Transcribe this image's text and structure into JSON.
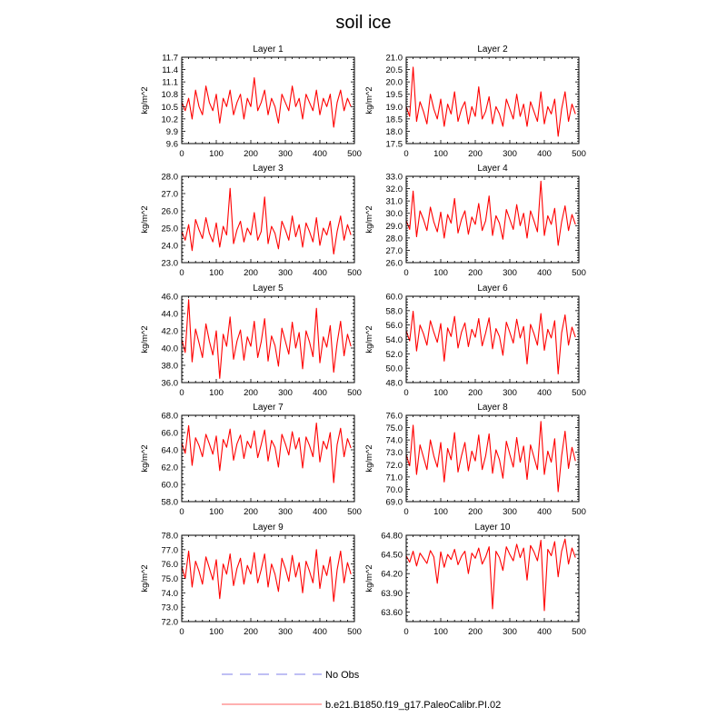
{
  "page": {
    "title": "soil ice"
  },
  "legend": {
    "items": [
      {
        "label": "No Obs",
        "color": "#9999ee",
        "style": "dashed"
      },
      {
        "label": "b.e21.B1850.f19_g17.PaleoCalibr.PI.02",
        "color": "#ff0000",
        "style": "solid"
      }
    ]
  },
  "chart_data": [
    {
      "type": "line",
      "title": "Layer 1",
      "xlabel": "",
      "ylabel": "kg/m^2",
      "xlim": [
        0,
        500
      ],
      "ylim": [
        9.6,
        11.7
      ],
      "xticks": [
        0,
        100,
        200,
        300,
        400,
        500
      ],
      "xtick_labels": [
        "0",
        "100",
        "200",
        "300",
        "400",
        "500"
      ],
      "yticks": [
        9.6,
        9.9,
        10.2,
        10.5,
        10.8,
        11.1,
        11.4,
        11.7
      ],
      "ytick_labels": [
        "9.6",
        "9.9",
        "10.2",
        "10.5",
        "10.8",
        "11.1",
        "11.4",
        "11.7"
      ],
      "series": [
        {
          "name": "b.e21.B1850.f19_g17.PaleoCalibr.PI.02",
          "color": "#ff0000",
          "values": [
            10.6,
            10.4,
            10.7,
            10.2,
            10.9,
            10.5,
            10.3,
            11.0,
            10.6,
            10.4,
            10.8,
            10.1,
            10.7,
            10.5,
            10.9,
            10.3,
            10.6,
            10.8,
            10.2,
            10.7,
            10.5,
            11.2,
            10.4,
            10.6,
            10.9,
            10.3,
            10.7,
            10.5,
            10.1,
            10.8,
            10.6,
            10.4,
            11.0,
            10.5,
            10.7,
            10.2,
            10.8,
            10.6,
            10.4,
            10.9,
            10.3,
            10.7,
            10.5,
            10.8,
            10.0,
            10.6,
            10.9,
            10.4,
            10.7,
            10.5
          ]
        }
      ]
    },
    {
      "type": "line",
      "title": "Layer 2",
      "xlabel": "",
      "ylabel": "kg/m^2",
      "xlim": [
        0,
        500
      ],
      "ylim": [
        17.5,
        21.0
      ],
      "xticks": [
        0,
        100,
        200,
        300,
        400,
        500
      ],
      "xtick_labels": [
        "0",
        "100",
        "200",
        "300",
        "400",
        "500"
      ],
      "yticks": [
        17.5,
        18.0,
        18.5,
        19.0,
        19.5,
        20.0,
        20.5,
        21.0
      ],
      "ytick_labels": [
        "17.5",
        "18.0",
        "18.5",
        "19.0",
        "19.5",
        "20.0",
        "20.5",
        "21.0"
      ],
      "series": [
        {
          "name": "b.e21.B1850.f19_g17.PaleoCalibr.PI.02",
          "color": "#ff0000",
          "values": [
            19.0,
            18.6,
            20.6,
            18.4,
            19.2,
            18.8,
            18.3,
            19.5,
            18.9,
            18.5,
            19.3,
            18.2,
            19.1,
            18.7,
            19.6,
            18.4,
            18.9,
            19.2,
            18.3,
            19.0,
            18.6,
            19.8,
            18.5,
            18.8,
            19.4,
            18.3,
            19.0,
            18.7,
            18.2,
            19.3,
            18.9,
            18.5,
            19.5,
            18.6,
            19.1,
            18.2,
            19.2,
            18.8,
            18.4,
            19.6,
            18.3,
            19.0,
            18.7,
            19.3,
            17.8,
            18.9,
            19.6,
            18.4,
            19.1,
            18.7
          ]
        }
      ]
    },
    {
      "type": "line",
      "title": "Layer 3",
      "xlabel": "",
      "ylabel": "kg/m^2",
      "xlim": [
        0,
        500
      ],
      "ylim": [
        23.0,
        28.0
      ],
      "xticks": [
        0,
        100,
        200,
        300,
        400,
        500
      ],
      "xtick_labels": [
        "0",
        "100",
        "200",
        "300",
        "400",
        "500"
      ],
      "yticks": [
        23.0,
        24.0,
        25.0,
        26.0,
        27.0,
        28.0
      ],
      "ytick_labels": [
        "23.0",
        "24.0",
        "25.0",
        "26.0",
        "27.0",
        "28.0"
      ],
      "series": [
        {
          "name": "b.e21.B1850.f19_g17.PaleoCalibr.PI.02",
          "color": "#ff0000",
          "values": [
            24.8,
            24.3,
            25.2,
            23.7,
            25.5,
            24.9,
            24.4,
            25.6,
            24.7,
            24.2,
            25.3,
            23.9,
            25.1,
            24.6,
            27.3,
            24.1,
            24.9,
            25.4,
            24.2,
            25.0,
            24.6,
            25.9,
            24.3,
            24.8,
            26.8,
            24.1,
            25.1,
            24.7,
            23.8,
            25.4,
            24.9,
            24.3,
            25.7,
            24.5,
            25.2,
            23.9,
            25.3,
            24.8,
            24.2,
            25.6,
            24.0,
            25.0,
            24.6,
            25.4,
            23.5,
            24.8,
            25.7,
            24.3,
            25.2,
            24.6
          ]
        }
      ]
    },
    {
      "type": "line",
      "title": "Layer 4",
      "xlabel": "",
      "ylabel": "kg/m^2",
      "xlim": [
        0,
        500
      ],
      "ylim": [
        26.0,
        33.0
      ],
      "xticks": [
        0,
        100,
        200,
        300,
        400,
        500
      ],
      "xtick_labels": [
        "0",
        "100",
        "200",
        "300",
        "400",
        "500"
      ],
      "yticks": [
        26.0,
        27.0,
        28.0,
        29.0,
        30.0,
        31.0,
        32.0,
        33.0
      ],
      "ytick_labels": [
        "26.0",
        "27.0",
        "28.0",
        "29.0",
        "30.0",
        "31.0",
        "32.0",
        "33.0"
      ],
      "series": [
        {
          "name": "b.e21.B1850.f19_g17.PaleoCalibr.PI.02",
          "color": "#ff0000",
          "values": [
            29.4,
            28.7,
            31.8,
            28.1,
            30.2,
            29.5,
            28.6,
            30.5,
            29.3,
            28.5,
            30.1,
            28.0,
            29.9,
            29.2,
            31.2,
            28.4,
            29.5,
            30.2,
            28.3,
            29.7,
            29.1,
            30.8,
            28.6,
            29.4,
            31.4,
            28.2,
            29.8,
            29.2,
            27.9,
            30.3,
            29.5,
            28.7,
            30.7,
            29.0,
            30.0,
            28.0,
            30.2,
            29.4,
            28.5,
            32.6,
            28.2,
            29.8,
            29.1,
            30.4,
            27.4,
            29.3,
            30.6,
            28.6,
            29.9,
            29.1
          ]
        }
      ]
    },
    {
      "type": "line",
      "title": "Layer 5",
      "xlabel": "",
      "ylabel": "kg/m^2",
      "xlim": [
        0,
        500
      ],
      "ylim": [
        36.0,
        46.0
      ],
      "xticks": [
        0,
        100,
        200,
        300,
        400,
        500
      ],
      "xtick_labels": [
        "0",
        "100",
        "200",
        "300",
        "400",
        "500"
      ],
      "yticks": [
        36.0,
        38.0,
        40.0,
        42.0,
        44.0,
        46.0
      ],
      "ytick_labels": [
        "36.0",
        "38.0",
        "40.0",
        "42.0",
        "44.0",
        "46.0"
      ],
      "series": [
        {
          "name": "b.e21.B1850.f19_g17.PaleoCalibr.PI.02",
          "color": "#ff0000",
          "values": [
            41.0,
            39.5,
            45.6,
            38.4,
            42.2,
            40.6,
            38.9,
            42.8,
            40.8,
            39.2,
            42.0,
            36.5,
            41.6,
            40.2,
            43.6,
            38.7,
            40.8,
            42.1,
            38.6,
            41.3,
            40.2,
            43.1,
            38.9,
            40.7,
            43.4,
            38.5,
            41.4,
            40.3,
            37.9,
            42.3,
            40.8,
            39.3,
            43.0,
            40.0,
            41.8,
            37.6,
            42.0,
            40.7,
            39.0,
            44.6,
            38.3,
            41.3,
            40.1,
            42.6,
            37.2,
            40.6,
            43.1,
            39.1,
            41.6,
            40.2
          ]
        }
      ]
    },
    {
      "type": "line",
      "title": "Layer 6",
      "xlabel": "",
      "ylabel": "kg/m^2",
      "xlim": [
        0,
        500
      ],
      "ylim": [
        48.0,
        60.0
      ],
      "xticks": [
        0,
        100,
        200,
        300,
        400,
        500
      ],
      "xtick_labels": [
        "0",
        "100",
        "200",
        "300",
        "400",
        "500"
      ],
      "yticks": [
        48.0,
        50.0,
        52.0,
        54.0,
        56.0,
        58.0,
        60.0
      ],
      "ytick_labels": [
        "48.0",
        "50.0",
        "52.0",
        "54.0",
        "56.0",
        "58.0",
        "60.0"
      ],
      "series": [
        {
          "name": "b.e21.B1850.f19_g17.PaleoCalibr.PI.02",
          "color": "#ff0000",
          "values": [
            55.2,
            53.8,
            57.9,
            52.4,
            56.0,
            54.8,
            53.2,
            56.6,
            55.0,
            53.6,
            56.2,
            51.0,
            55.6,
            54.4,
            57.2,
            52.8,
            55.0,
            56.3,
            53.0,
            55.4,
            54.3,
            56.9,
            53.1,
            54.9,
            57.0,
            52.7,
            55.5,
            54.4,
            51.8,
            56.4,
            55.0,
            53.5,
            56.8,
            54.2,
            55.8,
            50.6,
            56.1,
            54.8,
            53.2,
            57.6,
            52.5,
            55.4,
            54.2,
            56.6,
            49.2,
            54.9,
            57.4,
            53.2,
            55.7,
            54.3
          ]
        }
      ]
    },
    {
      "type": "line",
      "title": "Layer 7",
      "xlabel": "",
      "ylabel": "kg/m^2",
      "xlim": [
        0,
        500
      ],
      "ylim": [
        58.0,
        68.0
      ],
      "xticks": [
        0,
        100,
        200,
        300,
        400,
        500
      ],
      "xtick_labels": [
        "0",
        "100",
        "200",
        "300",
        "400",
        "500"
      ],
      "yticks": [
        58.0,
        60.0,
        62.0,
        64.0,
        66.0,
        68.0
      ],
      "ytick_labels": [
        "58.0",
        "60.0",
        "62.0",
        "64.0",
        "66.0",
        "68.0"
      ],
      "series": [
        {
          "name": "b.e21.B1850.f19_g17.PaleoCalibr.PI.02",
          "color": "#ff0000",
          "values": [
            64.8,
            63.6,
            66.8,
            62.2,
            65.4,
            64.5,
            63.2,
            65.8,
            64.7,
            63.5,
            65.6,
            61.6,
            65.2,
            64.3,
            66.4,
            62.8,
            64.7,
            65.7,
            63.0,
            65.0,
            64.2,
            66.2,
            63.1,
            64.6,
            66.3,
            62.7,
            65.1,
            64.3,
            62.0,
            65.8,
            64.7,
            63.4,
            66.1,
            64.1,
            65.4,
            61.9,
            65.5,
            64.5,
            63.2,
            67.1,
            62.6,
            65.0,
            64.1,
            66.0,
            60.2,
            64.6,
            66.5,
            63.2,
            65.3,
            64.2
          ]
        }
      ]
    },
    {
      "type": "line",
      "title": "Layer 8",
      "xlabel": "",
      "ylabel": "kg/m^2",
      "xlim": [
        0,
        500
      ],
      "ylim": [
        69.0,
        76.0
      ],
      "xticks": [
        0,
        100,
        200,
        300,
        400,
        500
      ],
      "xtick_labels": [
        "0",
        "100",
        "200",
        "300",
        "400",
        "500"
      ],
      "yticks": [
        69.0,
        70.0,
        71.0,
        72.0,
        73.0,
        74.0,
        75.0,
        76.0
      ],
      "ytick_labels": [
        "69.0",
        "70.0",
        "71.0",
        "72.0",
        "73.0",
        "74.0",
        "75.0",
        "76.0"
      ],
      "series": [
        {
          "name": "b.e21.B1850.f19_g17.PaleoCalibr.PI.02",
          "color": "#ff0000",
          "values": [
            72.8,
            71.9,
            75.2,
            71.2,
            73.6,
            72.6,
            71.6,
            74.0,
            72.7,
            71.8,
            73.8,
            70.6,
            73.3,
            72.4,
            74.6,
            71.4,
            72.7,
            73.8,
            71.5,
            73.1,
            72.3,
            74.4,
            71.6,
            72.7,
            74.5,
            71.3,
            73.2,
            72.4,
            70.9,
            73.9,
            72.8,
            71.8,
            74.2,
            72.2,
            73.5,
            70.8,
            73.6,
            72.6,
            71.6,
            75.5,
            71.2,
            73.1,
            72.2,
            74.1,
            69.8,
            72.7,
            74.7,
            71.7,
            73.4,
            72.3
          ]
        }
      ]
    },
    {
      "type": "line",
      "title": "Layer 9",
      "xlabel": "",
      "ylabel": "kg/m^2",
      "xlim": [
        0,
        500
      ],
      "ylim": [
        72.0,
        78.0
      ],
      "xticks": [
        0,
        100,
        200,
        300,
        400,
        500
      ],
      "xtick_labels": [
        "0",
        "100",
        "200",
        "300",
        "400",
        "500"
      ],
      "yticks": [
        72.0,
        73.0,
        74.0,
        75.0,
        76.0,
        77.0,
        78.0
      ],
      "ytick_labels": [
        "72.0",
        "73.0",
        "74.0",
        "75.0",
        "76.0",
        "77.0",
        "78.0"
      ],
      "series": [
        {
          "name": "b.e21.B1850.f19_g17.PaleoCalibr.PI.02",
          "color": "#ff0000",
          "values": [
            75.8,
            75.0,
            76.9,
            74.4,
            76.2,
            75.5,
            74.6,
            76.5,
            75.7,
            74.9,
            76.3,
            73.6,
            76.0,
            75.3,
            76.7,
            74.5,
            75.7,
            76.4,
            74.6,
            75.9,
            75.3,
            76.8,
            74.7,
            75.6,
            76.7,
            74.4,
            76.0,
            75.3,
            74.1,
            76.4,
            75.7,
            74.8,
            76.6,
            75.1,
            76.1,
            74.0,
            76.2,
            75.5,
            74.7,
            77.0,
            74.3,
            75.9,
            75.2,
            76.5,
            73.4,
            75.6,
            76.9,
            74.7,
            76.1,
            75.3
          ]
        }
      ]
    },
    {
      "type": "line",
      "title": "Layer 10",
      "xlabel": "",
      "ylabel": "kg/m^2",
      "xlim": [
        0,
        500
      ],
      "ylim": [
        63.45,
        64.8
      ],
      "xticks": [
        0,
        100,
        200,
        300,
        400,
        500
      ],
      "xtick_labels": [
        "0",
        "100",
        "200",
        "300",
        "400",
        "500"
      ],
      "yticks": [
        63.6,
        63.9,
        64.2,
        64.5,
        64.8
      ],
      "ytick_labels": [
        "63.60",
        "63.90",
        "64.20",
        "64.50",
        "64.80"
      ],
      "series": [
        {
          "name": "b.e21.B1850.f19_g17.PaleoCalibr.PI.02",
          "color": "#ff0000",
          "values": [
            64.48,
            64.38,
            64.55,
            64.32,
            64.52,
            64.44,
            64.36,
            64.56,
            64.46,
            64.05,
            64.54,
            64.3,
            64.5,
            64.42,
            64.58,
            64.34,
            64.47,
            64.55,
            64.2,
            64.52,
            64.44,
            64.6,
            64.35,
            64.46,
            64.62,
            63.65,
            64.55,
            64.45,
            64.25,
            64.62,
            64.5,
            64.4,
            64.66,
            64.45,
            64.6,
            64.1,
            64.64,
            64.54,
            64.4,
            64.72,
            63.62,
            64.58,
            64.48,
            64.7,
            64.15,
            64.55,
            64.74,
            64.35,
            64.6,
            64.45
          ]
        }
      ]
    }
  ]
}
